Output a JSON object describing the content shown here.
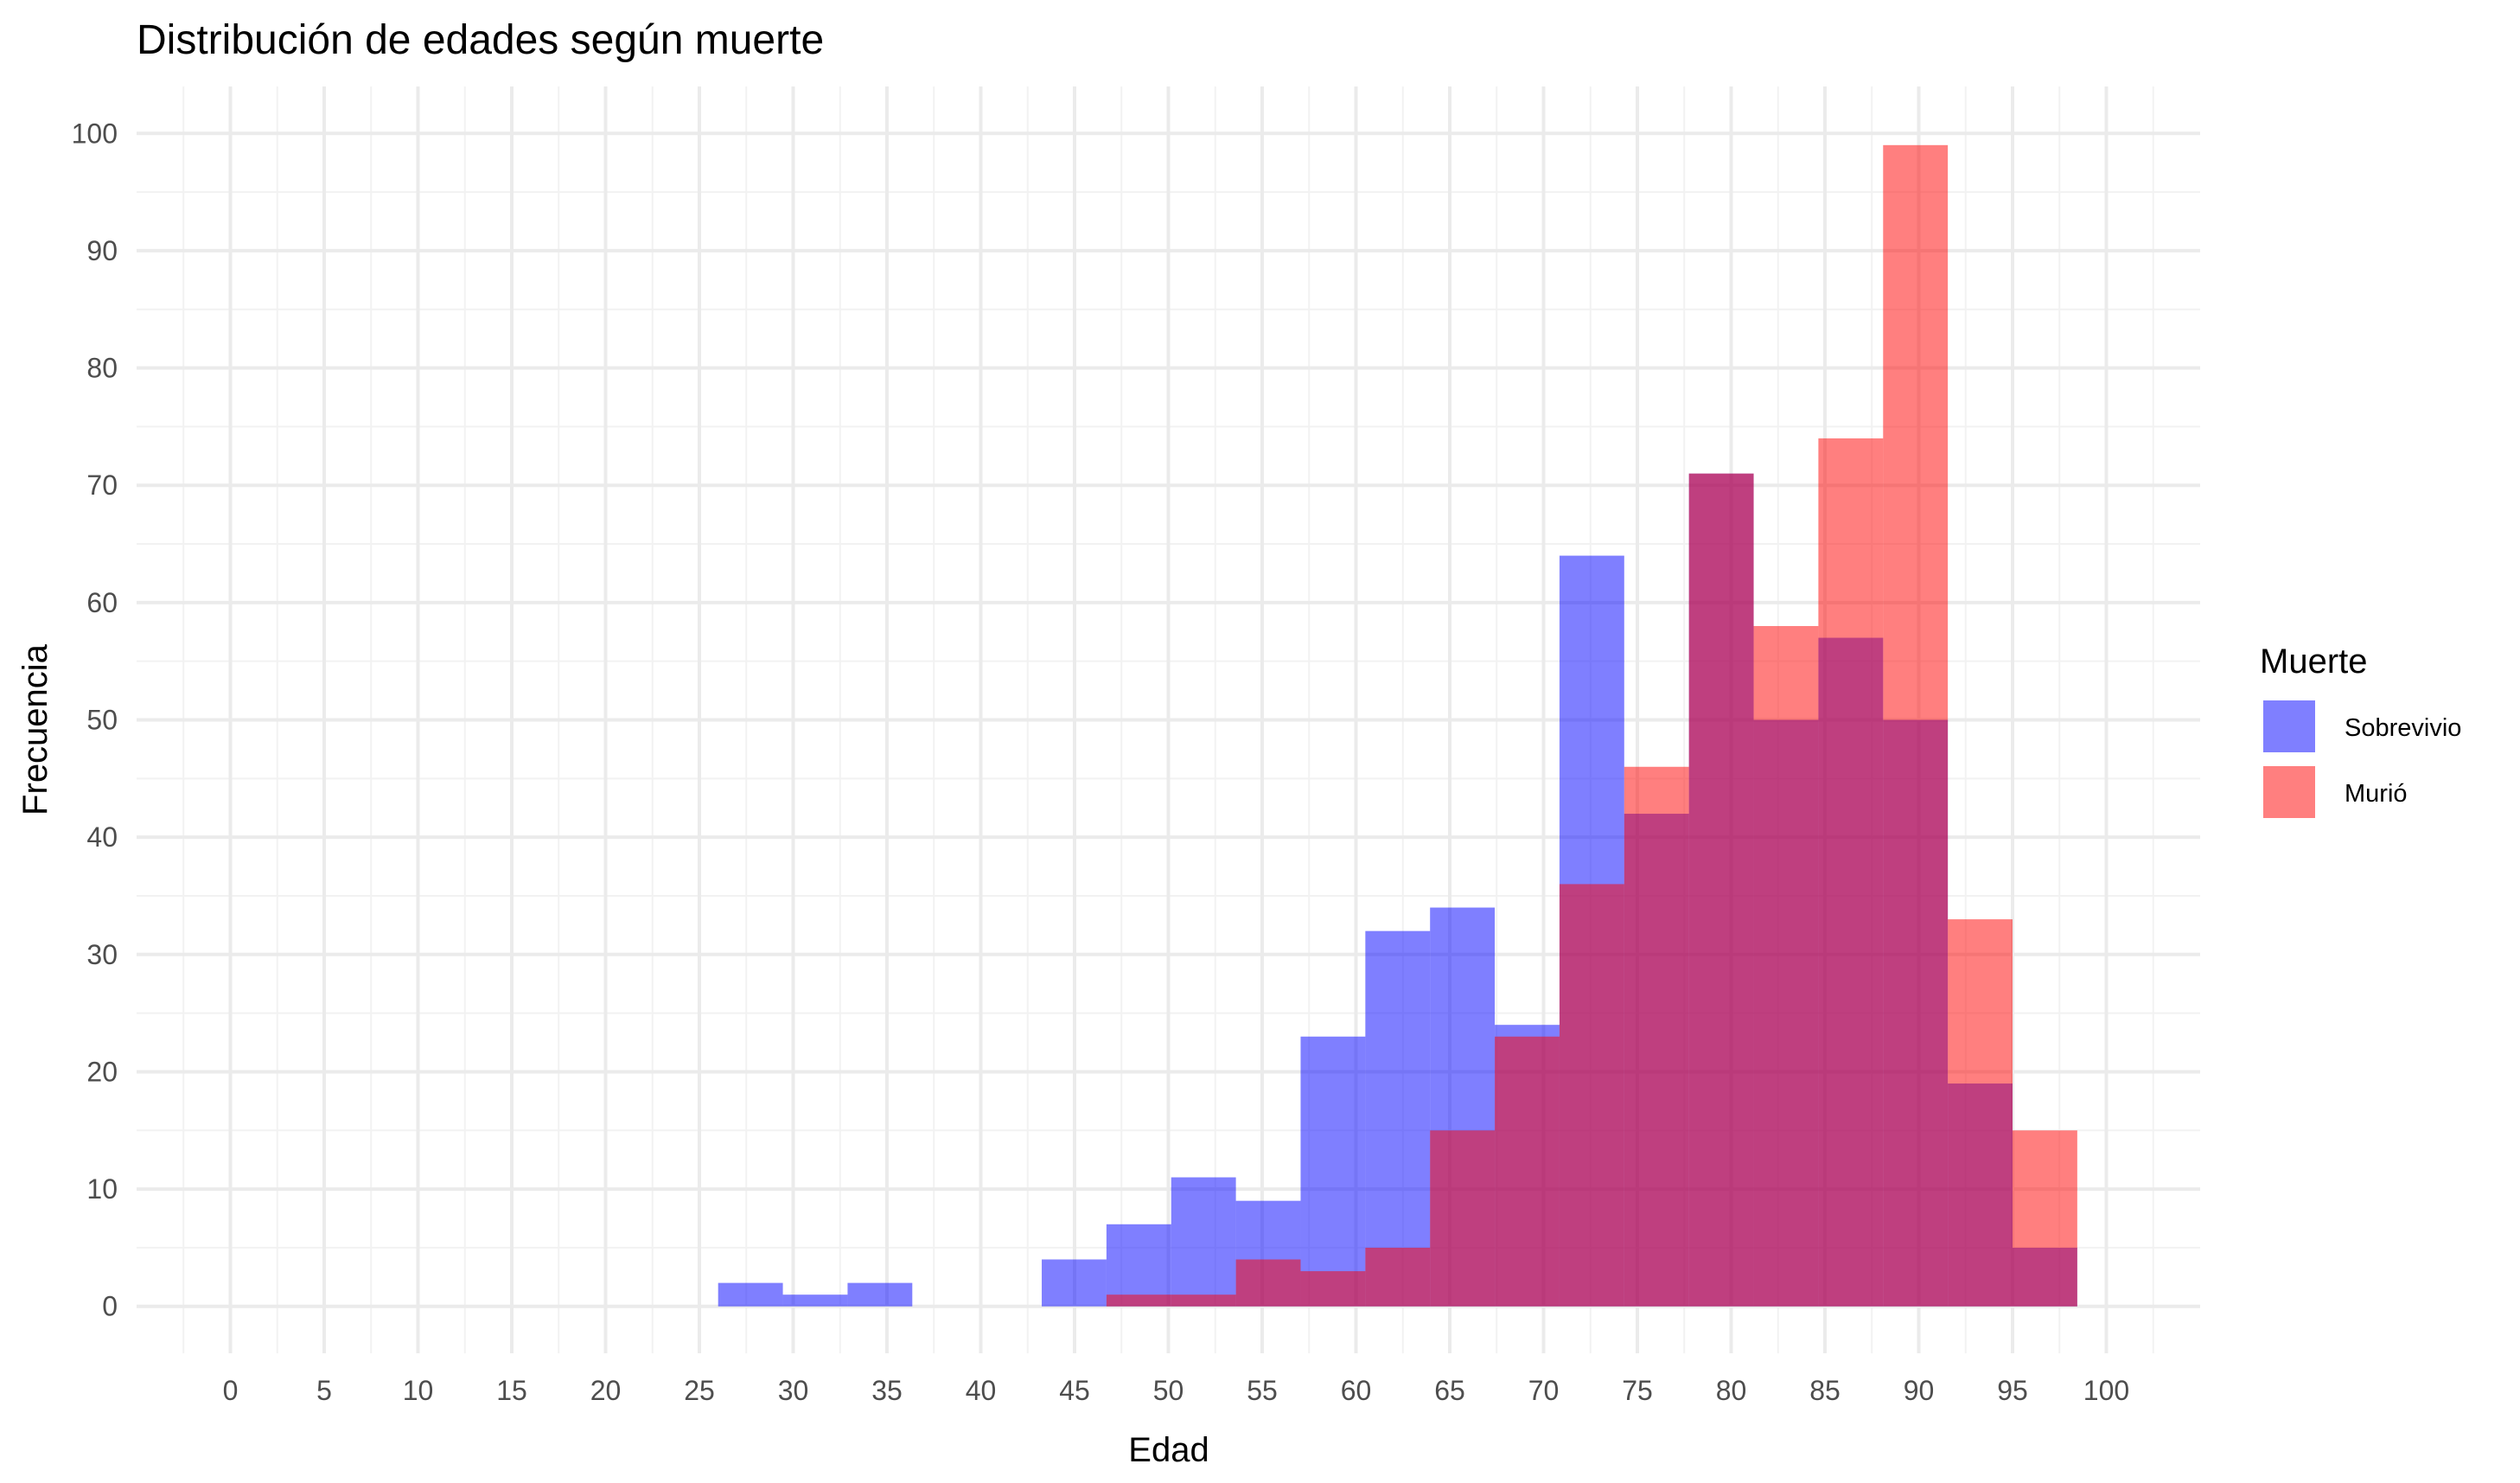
{
  "chart_data": {
    "type": "bar",
    "title": "Distribución de edades según muerte",
    "xlabel": "Edad",
    "ylabel": "Frecuencia",
    "xlim": [
      -5,
      105
    ],
    "ylim": [
      -4,
      104
    ],
    "x_ticks": [
      0,
      5,
      10,
      15,
      20,
      25,
      30,
      35,
      40,
      45,
      50,
      55,
      60,
      65,
      70,
      75,
      80,
      85,
      90,
      95,
      100
    ],
    "y_ticks": [
      0,
      10,
      20,
      30,
      40,
      50,
      60,
      70,
      80,
      90,
      100
    ],
    "grid": true,
    "bin_width": 3.45,
    "bin_starts": [
      26.0,
      29.45,
      32.9,
      36.35,
      39.8,
      43.25,
      46.7,
      50.15,
      53.6,
      57.05,
      60.5,
      63.95,
      67.4,
      70.85,
      74.3,
      77.75,
      81.2,
      84.65,
      88.1,
      91.55,
      95.0
    ],
    "series": [
      {
        "name": "Sobrevivio",
        "color": "#0000ff",
        "opacity": 0.5,
        "values": [
          2,
          1,
          2,
          0,
          0,
          4,
          7,
          11,
          9,
          23,
          32,
          34,
          24,
          64,
          42,
          71,
          50,
          57,
          50,
          19,
          5
        ]
      },
      {
        "name": "Murió",
        "color": "#ff0000",
        "opacity": 0.5,
        "values": [
          0,
          0,
          0,
          0,
          0,
          0,
          1,
          1,
          4,
          3,
          5,
          15,
          23,
          36,
          46,
          71,
          58,
          74,
          99,
          33,
          15
        ]
      }
    ],
    "legend": {
      "title": "Muerte",
      "position": "right"
    }
  }
}
